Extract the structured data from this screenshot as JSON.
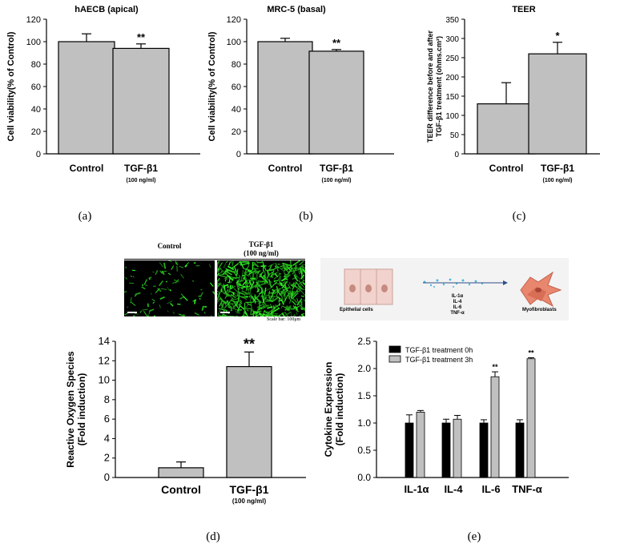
{
  "chart_data": [
    {
      "id": "a",
      "type": "bar",
      "title": "hAECB (apical)",
      "ylabel": "Cell viability(% of Control)",
      "ylim": [
        0,
        120
      ],
      "yticks": [
        0,
        20,
        40,
        60,
        80,
        100,
        120
      ],
      "categories": [
        "Control",
        "TGF-β1"
      ],
      "category_sub": [
        "",
        "(100 ng/ml)"
      ],
      "values": [
        100,
        94
      ],
      "errors": [
        7,
        4
      ],
      "annotations": [
        "",
        "**"
      ],
      "bar_color": "#c0c0c0"
    },
    {
      "id": "b",
      "type": "bar",
      "title": "MRC-5 (basal)",
      "ylabel": "Cell viability(% of Control)",
      "ylim": [
        0,
        120
      ],
      "yticks": [
        0,
        20,
        40,
        60,
        80,
        100,
        120
      ],
      "categories": [
        "Control",
        "TGF-β1"
      ],
      "category_sub": [
        "",
        "(100 ng/ml)"
      ],
      "values": [
        100,
        91.5
      ],
      "errors": [
        3,
        1.5
      ],
      "annotations": [
        "",
        "**"
      ],
      "bar_color": "#c0c0c0"
    },
    {
      "id": "c",
      "type": "bar",
      "title": "TEER",
      "ylabel": "TEER difference before and after TGF-β1 treatment (ohms.cm²)",
      "ylabel_lines": [
        "TEER difference before and after",
        "TGF-β1 treatment (ohms.cm²)"
      ],
      "ylim": [
        0,
        350
      ],
      "yticks": [
        0,
        50,
        100,
        150,
        200,
        250,
        300,
        350
      ],
      "categories": [
        "Control",
        "TGF-β1"
      ],
      "category_sub": [
        "",
        "(100 ng/ml)"
      ],
      "values": [
        130,
        260
      ],
      "errors": [
        55,
        30
      ],
      "annotations": [
        "",
        "*"
      ],
      "bar_color": "#c0c0c0"
    },
    {
      "id": "d",
      "type": "bar",
      "ylabel": "Reactive Oxygen Species (Fold induction)",
      "ylabel_lines": [
        "Reactive Oxygen Species",
        "(Fold induction)"
      ],
      "ylim": [
        0,
        14
      ],
      "yticks": [
        0,
        2,
        4,
        6,
        8,
        10,
        12,
        14
      ],
      "categories": [
        "Control",
        "TGF-β1"
      ],
      "category_sub": [
        "",
        "(100 ng/ml)"
      ],
      "values": [
        1.0,
        11.4
      ],
      "errors": [
        0.6,
        1.5
      ],
      "annotations": [
        "",
        "**"
      ],
      "bar_color": "#c0c0c0"
    },
    {
      "id": "e",
      "type": "bar",
      "ylabel": "Cytokine Expression (Fold induction)",
      "ylabel_lines": [
        "Cytokine Expression",
        "(Fold induction)"
      ],
      "ylim": [
        0,
        2.5
      ],
      "yticks": [
        "0.0",
        "0.5",
        "1.0",
        "1.5",
        "2.0",
        "2.5"
      ],
      "categories": [
        "IL-1α",
        "IL-4",
        "IL-6",
        "TNF-α"
      ],
      "series": [
        {
          "name": "TGF-β1 treatment 0h",
          "color": "#000000",
          "values": [
            1.0,
            1.0,
            1.0,
            1.0
          ],
          "errors": [
            0.15,
            0.07,
            0.06,
            0.06
          ],
          "annotations": [
            "",
            "",
            "",
            ""
          ]
        },
        {
          "name": "TGF-β1 treatment 3h",
          "color": "#c0c0c0",
          "values": [
            1.2,
            1.07,
            1.85,
            2.18
          ],
          "errors": [
            0.03,
            0.07,
            0.09,
            0.02
          ],
          "annotations": [
            "",
            "",
            "**",
            "**"
          ]
        }
      ],
      "legend": "top-left"
    }
  ],
  "sublabels": [
    "(a)",
    "(b)",
    "(c)",
    "(d)",
    "(e)"
  ],
  "micrographs": {
    "control_label": "Control",
    "tgf_label_line1": "TGF-β1",
    "tgf_label_line2": "(100 ng/ml)",
    "scale_text": "Scale bar: 100μm"
  },
  "schematic": {
    "epithelial": "Epithelial cells",
    "cytokines": [
      "IL-1α",
      "IL-4",
      "IL-6",
      "TNF-α"
    ],
    "myofibroblasts": "Myofibroblasts"
  }
}
